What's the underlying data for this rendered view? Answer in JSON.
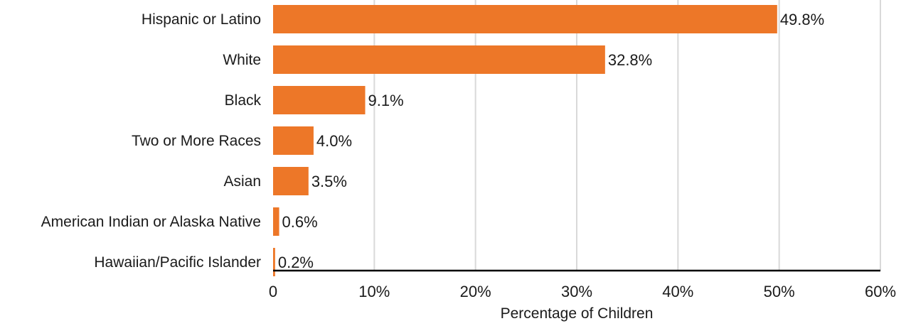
{
  "chart_data": {
    "type": "bar",
    "orientation": "horizontal",
    "categories": [
      "Hispanic or Latino",
      "White",
      "Black",
      "Two or More Races",
      "Asian",
      "American Indian or Alaska Native",
      "Hawaiian/Pacific Islander"
    ],
    "values": [
      49.8,
      32.8,
      9.1,
      4.0,
      3.5,
      0.6,
      0.2
    ],
    "value_labels": [
      "49.8%",
      "32.8%",
      "9.1%",
      "4.0%",
      "3.5%",
      "0.6%",
      "0.2%"
    ],
    "xlabel": "Percentage of Children",
    "ylabel": "",
    "xlim": [
      0,
      60
    ],
    "x_ticks": [
      0,
      10,
      20,
      30,
      40,
      50,
      60
    ],
    "x_tick_labels": [
      "0",
      "10%",
      "20%",
      "30%",
      "40%",
      "50%",
      "60%"
    ],
    "grid": "vertical",
    "legend": "none",
    "colors": {
      "bar": "#ED7728",
      "grid": "#d9d9d9",
      "axis": "#000000"
    }
  }
}
